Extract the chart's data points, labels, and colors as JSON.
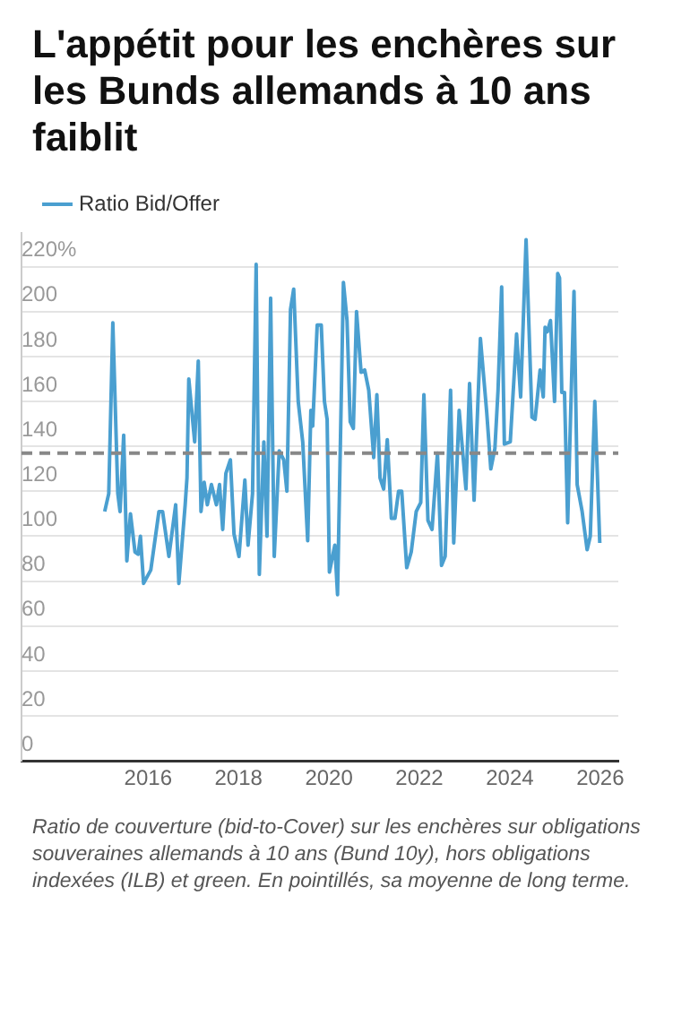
{
  "chart_data": {
    "type": "line",
    "title": "L'appétit pour les enchères sur les Bunds allemands à 10 ans faiblit",
    "x": [
      2015.04,
      2015.13,
      2015.22,
      2015.33,
      2015.38,
      2015.46,
      2015.53,
      2015.61,
      2015.71,
      2015.78,
      2015.83,
      2015.9,
      2016.06,
      2016.24,
      2016.32,
      2016.46,
      2016.61,
      2016.68,
      2016.82,
      2016.86,
      2016.9,
      2017.03,
      2017.11,
      2017.17,
      2017.24,
      2017.31,
      2017.4,
      2017.51,
      2017.58,
      2017.65,
      2017.72,
      2017.82,
      2017.9,
      2018.01,
      2018.14,
      2018.21,
      2018.31,
      2018.39,
      2018.46,
      2018.56,
      2018.63,
      2018.71,
      2018.79,
      2018.9,
      2019.0,
      2019.07,
      2019.15,
      2019.22,
      2019.32,
      2019.42,
      2019.53,
      2019.6,
      2019.64,
      2019.74,
      2019.83,
      2019.9,
      2019.96,
      2020.01,
      2020.13,
      2020.19,
      2020.32,
      2020.4,
      2020.47,
      2020.54,
      2020.61,
      2020.71,
      2020.79,
      2020.88,
      2020.99,
      2021.06,
      2021.13,
      2021.21,
      2021.29,
      2021.38,
      2021.46,
      2021.54,
      2021.61,
      2021.72,
      2021.82,
      2021.93,
      2022.03,
      2022.1,
      2022.19,
      2022.28,
      2022.4,
      2022.49,
      2022.57,
      2022.69,
      2022.76,
      2022.88,
      2022.93,
      2023.03,
      2023.11,
      2023.21,
      2023.35,
      2023.49,
      2023.58,
      2023.67,
      2023.74,
      2023.82,
      2023.88,
      2024.01,
      2024.15,
      2024.24,
      2024.36,
      2024.49,
      2024.56,
      2024.67,
      2024.74,
      2024.78,
      2024.83,
      2024.9,
      2024.99,
      2025.06,
      2025.1,
      2025.15,
      2025.21,
      2025.28,
      2025.42,
      2025.49,
      2025.6,
      2025.71,
      2025.78,
      2025.88,
      2025.99
    ],
    "series": [
      {
        "name": "Ratio Bid/Offer",
        "color": "#4a9fd0",
        "values": [
          111,
          119,
          195,
          119,
          111,
          145,
          89,
          110,
          93,
          92,
          100,
          79,
          85,
          111,
          111,
          91,
          114,
          79,
          114,
          126,
          170,
          142,
          178,
          111,
          124,
          114,
          123,
          114,
          123,
          103,
          128,
          134,
          101,
          91,
          125,
          96,
          119,
          221,
          83,
          142,
          100,
          206,
          91,
          138,
          134,
          120,
          201,
          210,
          160,
          142,
          98,
          156,
          149,
          194,
          194,
          160,
          152,
          84,
          96,
          74,
          213,
          196,
          151,
          148,
          200,
          173,
          174,
          165,
          135,
          163,
          126,
          121,
          143,
          108,
          108,
          120,
          120,
          86,
          93,
          111,
          115,
          163,
          107,
          103,
          137,
          87,
          91,
          165,
          97,
          156,
          144,
          121,
          168,
          116,
          188,
          155,
          130,
          139,
          165,
          211,
          141,
          142,
          190,
          162,
          232,
          153,
          152,
          174,
          162,
          193,
          191,
          196,
          160,
          217,
          215,
          164,
          164,
          106,
          209,
          123,
          111,
          94,
          100,
          160,
          97
        ]
      }
    ],
    "xlim": [
      2013.2,
      2026.4
    ],
    "xticks": [
      2016,
      2018,
      2020,
      2022,
      2024,
      2026
    ],
    "ylim": [
      0,
      235
    ],
    "yticks": [
      0,
      20,
      40,
      60,
      80,
      100,
      120,
      140,
      160,
      180,
      200,
      {
        "value": 220,
        "label": "220%"
      }
    ],
    "grid": "y",
    "legend": "top left",
    "ref_lines": [
      {
        "axis": "y",
        "value": 137,
        "color": "#888888",
        "line_style": "dashed"
      }
    ],
    "annotations": [
      "Ratio de couverture (bid-to-Cover) sur les enchères sur obligations souveraines allemands à 10 ans (Bund 10y), hors obligations indexées (ILB) et green. En pointillés, sa moyenne de long terme."
    ]
  }
}
